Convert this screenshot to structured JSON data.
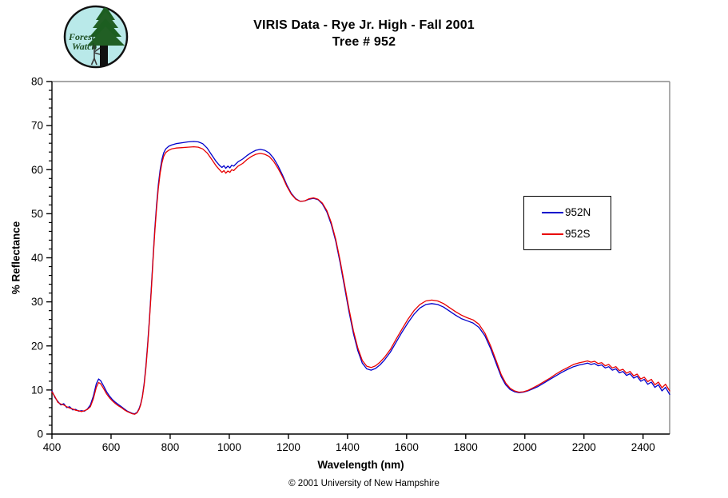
{
  "header": {
    "title": "VIRIS Data - Rye Jr. High - Fall 2001",
    "subtitle": "Tree # 952"
  },
  "logo": {
    "line1": "Forest",
    "line2": "Watch"
  },
  "footer": {
    "copyright": "© 2001 University of New Hampshire"
  },
  "legend": {
    "items": [
      {
        "label": "952N",
        "color": "#0000cc"
      },
      {
        "label": "952S",
        "color": "#e80000"
      }
    ]
  },
  "chart_data": {
    "type": "line",
    "title": "VIRIS Data - Rye Jr. High - Fall 2001 — Tree # 952",
    "xlabel": "Wavelength (nm)",
    "ylabel": "% Reflectance",
    "xlim": [
      400,
      2490
    ],
    "ylim": [
      0,
      80
    ],
    "x_ticks": [
      400,
      600,
      800,
      1000,
      1200,
      1400,
      1600,
      1800,
      2000,
      2200,
      2400
    ],
    "y_ticks": [
      0,
      10,
      20,
      30,
      40,
      50,
      60,
      70,
      80
    ],
    "y_minor_step": 2,
    "grid": "off",
    "legend_position": "right-middle",
    "border_colors": {
      "axis": "#000000",
      "frame": "#8a8a8a"
    },
    "x": [
      400,
      410,
      420,
      430,
      440,
      450,
      460,
      470,
      480,
      490,
      500,
      510,
      520,
      530,
      540,
      550,
      558,
      565,
      575,
      585,
      595,
      605,
      615,
      625,
      635,
      645,
      655,
      665,
      672,
      680,
      688,
      695,
      700,
      706,
      712,
      718,
      724,
      730,
      736,
      742,
      748,
      754,
      760,
      766,
      772,
      778,
      785,
      795,
      805,
      820,
      840,
      860,
      880,
      895,
      910,
      925,
      940,
      955,
      968,
      975,
      982,
      988,
      995,
      1002,
      1008,
      1015,
      1022,
      1030,
      1045,
      1060,
      1075,
      1090,
      1105,
      1120,
      1135,
      1150,
      1165,
      1180,
      1195,
      1210,
      1225,
      1240,
      1255,
      1270,
      1285,
      1300,
      1315,
      1330,
      1345,
      1360,
      1375,
      1390,
      1405,
      1420,
      1435,
      1450,
      1465,
      1480,
      1495,
      1510,
      1525,
      1545,
      1565,
      1585,
      1605,
      1625,
      1645,
      1665,
      1685,
      1705,
      1725,
      1745,
      1765,
      1785,
      1805,
      1825,
      1845,
      1865,
      1885,
      1905,
      1920,
      1935,
      1950,
      1965,
      1980,
      1995,
      2010,
      2025,
      2045,
      2065,
      2085,
      2105,
      2125,
      2145,
      2165,
      2185,
      2200,
      2212,
      2224,
      2236,
      2248,
      2260,
      2272,
      2284,
      2296,
      2308,
      2320,
      2332,
      2344,
      2356,
      2368,
      2380,
      2392,
      2404,
      2416,
      2428,
      2440,
      2452,
      2464,
      2476,
      2490
    ],
    "series": [
      {
        "name": "952N",
        "color": "#0000cc",
        "values": [
          9.8,
          8.3,
          7.4,
          6.6,
          6.9,
          6.0,
          6.2,
          5.5,
          5.6,
          5.2,
          5.3,
          5.2,
          5.7,
          6.6,
          8.6,
          11.4,
          12.5,
          12.1,
          10.9,
          9.6,
          8.6,
          7.8,
          7.2,
          6.7,
          6.2,
          5.7,
          5.2,
          4.9,
          4.7,
          4.6,
          4.9,
          5.8,
          6.8,
          8.6,
          11.5,
          15.5,
          20.5,
          26.5,
          33.0,
          40.0,
          46.5,
          52.0,
          56.5,
          60.0,
          62.3,
          63.8,
          64.7,
          65.3,
          65.6,
          65.9,
          66.1,
          66.3,
          66.4,
          66.3,
          65.9,
          64.9,
          63.4,
          61.9,
          60.9,
          60.5,
          60.9,
          60.3,
          60.8,
          60.4,
          61.0,
          60.8,
          61.3,
          61.8,
          62.4,
          63.2,
          63.9,
          64.4,
          64.6,
          64.4,
          63.8,
          62.6,
          60.9,
          58.8,
          56.5,
          54.6,
          53.4,
          52.8,
          52.9,
          53.3,
          53.5,
          53.2,
          52.2,
          50.4,
          47.6,
          43.8,
          38.9,
          33.3,
          27.8,
          22.8,
          18.9,
          16.1,
          14.8,
          14.5,
          14.9,
          15.7,
          16.8,
          18.6,
          20.9,
          23.2,
          25.3,
          27.2,
          28.6,
          29.4,
          29.6,
          29.4,
          28.8,
          27.9,
          27.0,
          26.2,
          25.7,
          25.2,
          24.2,
          22.3,
          19.3,
          15.7,
          13.0,
          11.2,
          10.1,
          9.6,
          9.4,
          9.5,
          9.8,
          10.2,
          10.8,
          11.6,
          12.4,
          13.2,
          14.0,
          14.7,
          15.3,
          15.7,
          15.9,
          16.1,
          15.8,
          16.0,
          15.5,
          15.7,
          15.0,
          15.3,
          14.5,
          14.8,
          13.9,
          14.2,
          13.3,
          13.7,
          12.7,
          13.1,
          12.0,
          12.4,
          11.3,
          11.8,
          10.6,
          11.2,
          9.8,
          10.6,
          9.0
        ]
      },
      {
        "name": "952S",
        "color": "#e80000",
        "values": [
          9.6,
          8.5,
          7.2,
          6.8,
          6.6,
          6.2,
          5.9,
          5.7,
          5.4,
          5.3,
          5.1,
          5.3,
          5.6,
          6.2,
          8.0,
          10.6,
          11.7,
          11.4,
          10.3,
          9.1,
          8.2,
          7.5,
          6.9,
          6.4,
          6.0,
          5.5,
          5.1,
          4.8,
          4.6,
          4.5,
          4.8,
          5.6,
          6.6,
          8.4,
          11.2,
          15.0,
          20.0,
          26.0,
          32.4,
          39.4,
          45.8,
          51.2,
          55.7,
          59.2,
          61.5,
          63.0,
          63.9,
          64.4,
          64.7,
          64.9,
          65.0,
          65.1,
          65.2,
          65.1,
          64.7,
          63.8,
          62.4,
          60.9,
          59.9,
          59.4,
          59.8,
          59.2,
          59.7,
          59.4,
          60.0,
          59.8,
          60.3,
          60.8,
          61.4,
          62.3,
          63.0,
          63.5,
          63.7,
          63.5,
          63.0,
          61.9,
          60.3,
          58.4,
          56.2,
          54.4,
          53.3,
          52.8,
          52.9,
          53.4,
          53.6,
          53.3,
          52.4,
          50.7,
          48.0,
          44.2,
          39.4,
          33.9,
          28.4,
          23.4,
          19.5,
          16.7,
          15.4,
          15.1,
          15.5,
          16.3,
          17.4,
          19.2,
          21.6,
          23.9,
          26.1,
          28.0,
          29.4,
          30.2,
          30.4,
          30.2,
          29.6,
          28.7,
          27.8,
          27.0,
          26.4,
          25.9,
          24.9,
          22.9,
          19.9,
          16.3,
          13.5,
          11.6,
          10.4,
          9.8,
          9.5,
          9.6,
          9.9,
          10.4,
          11.1,
          11.9,
          12.7,
          13.6,
          14.4,
          15.1,
          15.8,
          16.2,
          16.4,
          16.6,
          16.3,
          16.5,
          16.0,
          16.2,
          15.5,
          15.8,
          15.0,
          15.3,
          14.4,
          14.7,
          13.8,
          14.2,
          13.2,
          13.6,
          12.5,
          12.9,
          11.9,
          12.4,
          11.2,
          11.8,
          10.5,
          11.3,
          9.8
        ]
      }
    ]
  }
}
